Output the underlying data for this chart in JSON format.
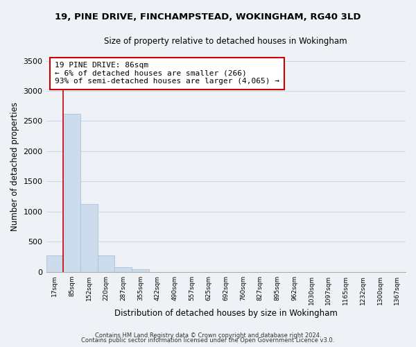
{
  "title_line1": "19, PINE DRIVE, FINCHAMPSTEAD, WOKINGHAM, RG40 3LD",
  "title_line2": "Size of property relative to detached houses in Wokingham",
  "xlabel": "Distribution of detached houses by size in Wokingham",
  "ylabel": "Number of detached properties",
  "categories": [
    "17sqm",
    "85sqm",
    "152sqm",
    "220sqm",
    "287sqm",
    "355sqm",
    "422sqm",
    "490sqm",
    "557sqm",
    "625sqm",
    "692sqm",
    "760sqm",
    "827sqm",
    "895sqm",
    "962sqm",
    "1030sqm",
    "1097sqm",
    "1165sqm",
    "1232sqm",
    "1300sqm",
    "1367sqm"
  ],
  "bar_values": [
    280,
    2620,
    1130,
    280,
    80,
    40,
    0,
    0,
    0,
    0,
    0,
    0,
    0,
    0,
    0,
    0,
    0,
    0,
    0,
    0,
    0
  ],
  "bar_color": "#ccdcec",
  "bar_edge_color": "#aac0d8",
  "grid_color": "#c8d8e8",
  "vline_color": "#cc0000",
  "box_edge_color": "#cc0000",
  "box_fill_color": "#ffffff",
  "box_text_line1": "19 PINE DRIVE: 86sqm",
  "box_text_line2": "← 6% of detached houses are smaller (266)",
  "box_text_line3": "93% of semi-detached houses are larger (4,065) →",
  "ylim_max": 3500,
  "yticks": [
    0,
    500,
    1000,
    1500,
    2000,
    2500,
    3000,
    3500
  ],
  "footnote1": "Contains HM Land Registry data © Crown copyright and database right 2024.",
  "footnote2": "Contains public sector information licensed under the Open Government Licence v3.0.",
  "bg_color": "#eef2f7",
  "plot_bg_color": "#eef2f7"
}
